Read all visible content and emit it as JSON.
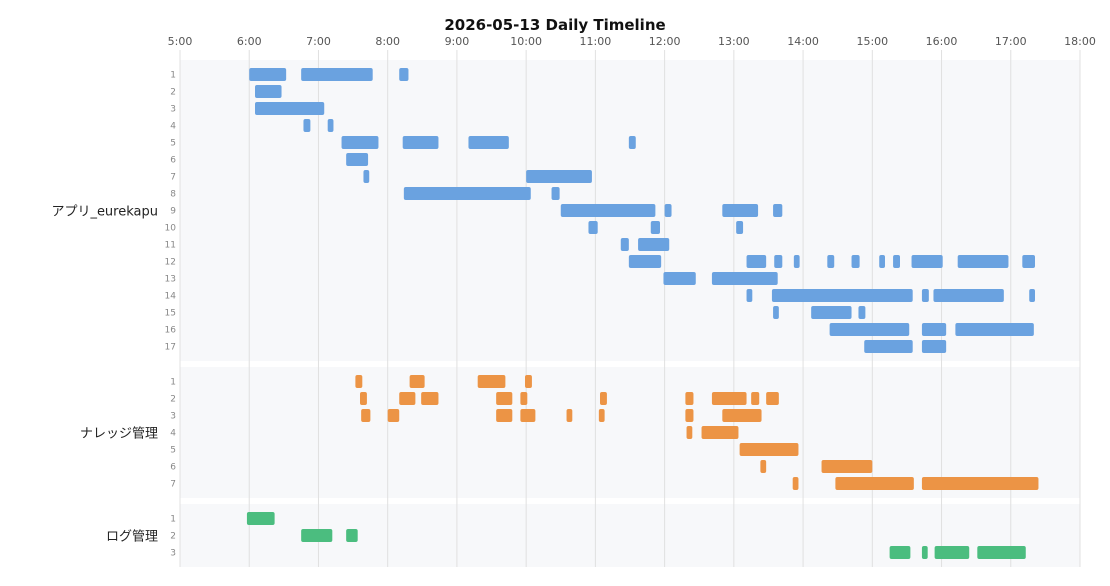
{
  "chart_data": {
    "type": "timeline",
    "title": "2026-05-13 Daily Timeline",
    "x_range": [
      "5:00",
      "18:00"
    ],
    "x_ticks": [
      "5:00",
      "6:00",
      "7:00",
      "8:00",
      "9:00",
      "10:00",
      "11:00",
      "12:00",
      "13:00",
      "14:00",
      "15:00",
      "16:00",
      "17:00",
      "18:00"
    ],
    "grid": true,
    "groups": [
      {
        "name": "アプリ_eurekapu",
        "color": "#6aa2e0",
        "rows": [
          {
            "label": "1",
            "intervals": [
              [
                "6:00",
                "6:32"
              ],
              [
                "6:45",
                "7:47"
              ],
              [
                "8:10",
                "8:18"
              ]
            ]
          },
          {
            "label": "2",
            "intervals": [
              [
                "6:05",
                "6:28"
              ]
            ]
          },
          {
            "label": "3",
            "intervals": [
              [
                "6:05",
                "7:05"
              ]
            ]
          },
          {
            "label": "4",
            "intervals": [
              [
                "6:47",
                "6:53"
              ],
              [
                "7:08",
                "7:13"
              ]
            ]
          },
          {
            "label": "5",
            "intervals": [
              [
                "7:20",
                "7:52"
              ],
              [
                "8:13",
                "8:44"
              ],
              [
                "9:10",
                "9:45"
              ],
              [
                "11:29",
                "11:35"
              ]
            ]
          },
          {
            "label": "6",
            "intervals": [
              [
                "7:24",
                "7:43"
              ]
            ]
          },
          {
            "label": "7",
            "intervals": [
              [
                "7:39",
                "7:44"
              ],
              [
                "10:00",
                "10:57"
              ]
            ]
          },
          {
            "label": "8",
            "intervals": [
              [
                "8:14",
                "10:04"
              ],
              [
                "10:22",
                "10:29"
              ]
            ]
          },
          {
            "label": "9",
            "intervals": [
              [
                "10:30",
                "11:52"
              ],
              [
                "12:00",
                "12:06"
              ],
              [
                "12:50",
                "13:21"
              ],
              [
                "13:34",
                "13:42"
              ]
            ]
          },
          {
            "label": "10",
            "intervals": [
              [
                "10:54",
                "11:02"
              ],
              [
                "11:48",
                "11:56"
              ],
              [
                "13:02",
                "13:08"
              ]
            ]
          },
          {
            "label": "11",
            "intervals": [
              [
                "11:22",
                "11:29"
              ],
              [
                "11:37",
                "12:04"
              ]
            ]
          },
          {
            "label": "12",
            "intervals": [
              [
                "11:29",
                "11:57"
              ],
              [
                "13:11",
                "13:28"
              ],
              [
                "13:35",
                "13:42"
              ],
              [
                "13:52",
                "13:57"
              ],
              [
                "14:21",
                "14:27"
              ],
              [
                "14:42",
                "14:49"
              ],
              [
                "15:06",
                "15:11"
              ],
              [
                "15:18",
                "15:24"
              ],
              [
                "15:34",
                "16:01"
              ],
              [
                "16:14",
                "16:58"
              ],
              [
                "17:10",
                "17:21"
              ]
            ]
          },
          {
            "label": "13",
            "intervals": [
              [
                "11:59",
                "12:27"
              ],
              [
                "12:41",
                "13:38"
              ]
            ]
          },
          {
            "label": "14",
            "intervals": [
              [
                "13:11",
                "13:16"
              ],
              [
                "13:33",
                "15:35"
              ],
              [
                "15:43",
                "15:49"
              ],
              [
                "15:53",
                "16:54"
              ],
              [
                "17:16",
                "17:21"
              ]
            ]
          },
          {
            "label": "15",
            "intervals": [
              [
                "13:34",
                "13:39"
              ],
              [
                "14:07",
                "14:42"
              ],
              [
                "14:48",
                "14:54"
              ]
            ]
          },
          {
            "label": "16",
            "intervals": [
              [
                "14:23",
                "15:32"
              ],
              [
                "15:43",
                "16:04"
              ],
              [
                "16:12",
                "17:20"
              ]
            ]
          },
          {
            "label": "17",
            "intervals": [
              [
                "14:53",
                "15:35"
              ],
              [
                "15:43",
                "16:04"
              ]
            ]
          }
        ]
      },
      {
        "name": "ナレッジ管理",
        "color": "#ec9445",
        "rows": [
          {
            "label": "1",
            "intervals": [
              [
                "7:32",
                "7:38"
              ],
              [
                "8:19",
                "8:32"
              ],
              [
                "9:18",
                "9:42"
              ],
              [
                "9:59",
                "10:05"
              ]
            ]
          },
          {
            "label": "2",
            "intervals": [
              [
                "7:36",
                "7:42"
              ],
              [
                "8:10",
                "8:24"
              ],
              [
                "8:29",
                "8:44"
              ],
              [
                "9:34",
                "9:48"
              ],
              [
                "9:55",
                "10:01"
              ],
              [
                "11:04",
                "11:10"
              ],
              [
                "12:18",
                "12:25"
              ],
              [
                "12:41",
                "13:11"
              ],
              [
                "13:15",
                "13:22"
              ],
              [
                "13:28",
                "13:39"
              ]
            ]
          },
          {
            "label": "3",
            "intervals": [
              [
                "7:37",
                "7:45"
              ],
              [
                "8:00",
                "8:10"
              ],
              [
                "9:34",
                "9:48"
              ],
              [
                "9:55",
                "10:08"
              ],
              [
                "10:35",
                "10:40"
              ],
              [
                "11:03",
                "11:08"
              ],
              [
                "12:18",
                "12:25"
              ],
              [
                "12:50",
                "13:24"
              ]
            ]
          },
          {
            "label": "4",
            "intervals": [
              [
                "12:19",
                "12:24"
              ],
              [
                "12:32",
                "13:04"
              ]
            ]
          },
          {
            "label": "5",
            "intervals": [
              [
                "13:05",
                "13:56"
              ]
            ]
          },
          {
            "label": "6",
            "intervals": [
              [
                "13:23",
                "13:28"
              ],
              [
                "14:16",
                "15:00"
              ]
            ]
          },
          {
            "label": "7",
            "intervals": [
              [
                "13:51",
                "13:56"
              ],
              [
                "14:28",
                "15:36"
              ],
              [
                "15:43",
                "17:24"
              ]
            ]
          }
        ]
      },
      {
        "name": "ログ管理",
        "color": "#4bbd7f",
        "rows": [
          {
            "label": "1",
            "intervals": [
              [
                "5:58",
                "6:22"
              ]
            ]
          },
          {
            "label": "2",
            "intervals": [
              [
                "6:45",
                "7:12"
              ],
              [
                "7:24",
                "7:34"
              ]
            ]
          },
          {
            "label": "3",
            "intervals": [
              [
                "15:15",
                "15:33"
              ],
              [
                "15:43",
                "15:48"
              ],
              [
                "15:54",
                "16:24"
              ],
              [
                "16:31",
                "17:13"
              ]
            ]
          }
        ]
      }
    ]
  }
}
